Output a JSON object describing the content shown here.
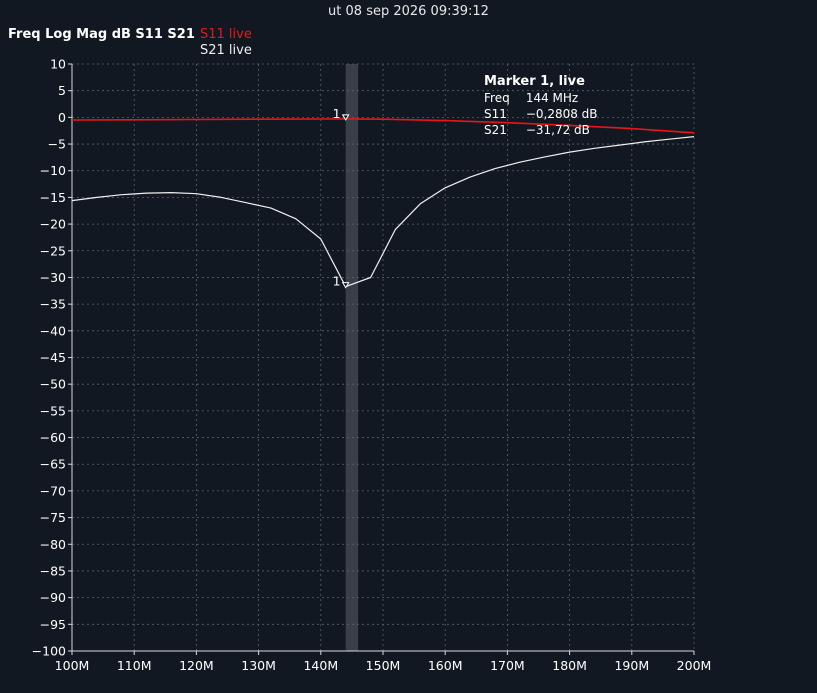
{
  "header": {
    "timestamp": "ut 08 sep 2026 09:39:12",
    "title": "Freq Log Mag dB S11 S21"
  },
  "legend": [
    {
      "label": "S11 live",
      "color": "#e8161b"
    },
    {
      "label": "S21 live",
      "color": "#f0f0f0"
    }
  ],
  "marker": {
    "title": "Marker 1, live",
    "number_label": "1",
    "rows": [
      {
        "key": "Freq",
        "value": "144 MHz"
      },
      {
        "key": "S11",
        "value": "−0,2808 dB"
      },
      {
        "key": "S21",
        "value": "−31,72 dB"
      }
    ],
    "freq_mhz": 144,
    "s11_db": -0.2808,
    "s21_db": -31.72,
    "band_mhz": [
      144,
      146
    ]
  },
  "colors": {
    "background": "#121821",
    "grid": "#5a6068",
    "axis": "#d8d8d8",
    "band": "#3a3f47"
  },
  "chart_data": {
    "type": "line",
    "title": "Freq Log Mag dB S11 S21",
    "xlabel": "",
    "ylabel": "",
    "xlim": [
      100,
      200
    ],
    "ylim": [
      -100,
      10
    ],
    "grid": true,
    "legend_position": "top-left",
    "x_ticks": [
      100,
      110,
      120,
      130,
      140,
      150,
      160,
      170,
      180,
      190,
      200
    ],
    "x_tick_labels": [
      "100M",
      "110M",
      "120M",
      "130M",
      "140M",
      "150M",
      "160M",
      "170M",
      "180M",
      "190M",
      "200M"
    ],
    "y_ticks": [
      10,
      5,
      0,
      -5,
      -10,
      -15,
      -20,
      -25,
      -30,
      -35,
      -40,
      -45,
      -50,
      -55,
      -60,
      -65,
      -70,
      -75,
      -80,
      -85,
      -90,
      -95,
      -100
    ],
    "y_tick_labels": [
      "10",
      "5",
      "0",
      "−5",
      "−10",
      "−15",
      "−20",
      "−25",
      "−30",
      "−35",
      "−40",
      "−45",
      "−50",
      "−55",
      "−60",
      "−65",
      "−70",
      "−75",
      "−80",
      "−85",
      "−90",
      "−95",
      "−100"
    ],
    "series": [
      {
        "name": "S11 live",
        "color": "#e8161b",
        "x": [
          100,
          110,
          120,
          130,
          140,
          144,
          150,
          160,
          170,
          180,
          190,
          200
        ],
        "y": [
          -0.5,
          -0.45,
          -0.4,
          -0.35,
          -0.3,
          -0.28,
          -0.35,
          -0.6,
          -1.0,
          -1.5,
          -2.1,
          -2.9
        ]
      },
      {
        "name": "S21 live",
        "color": "#f0f0f0",
        "x": [
          100,
          104,
          108,
          112,
          116,
          120,
          124,
          128,
          132,
          136,
          140,
          143,
          144,
          148,
          152,
          156,
          160,
          164,
          168,
          172,
          176,
          180,
          184,
          188,
          192,
          196,
          200
        ],
        "y": [
          -15.6,
          -15.0,
          -14.5,
          -14.2,
          -14.1,
          -14.3,
          -15.0,
          -16.0,
          -17.0,
          -19.0,
          -22.8,
          -29.5,
          -31.72,
          -30.0,
          -21.0,
          -16.2,
          -13.2,
          -11.2,
          -9.6,
          -8.4,
          -7.4,
          -6.5,
          -5.8,
          -5.2,
          -4.6,
          -4.1,
          -3.6
        ]
      }
    ]
  }
}
